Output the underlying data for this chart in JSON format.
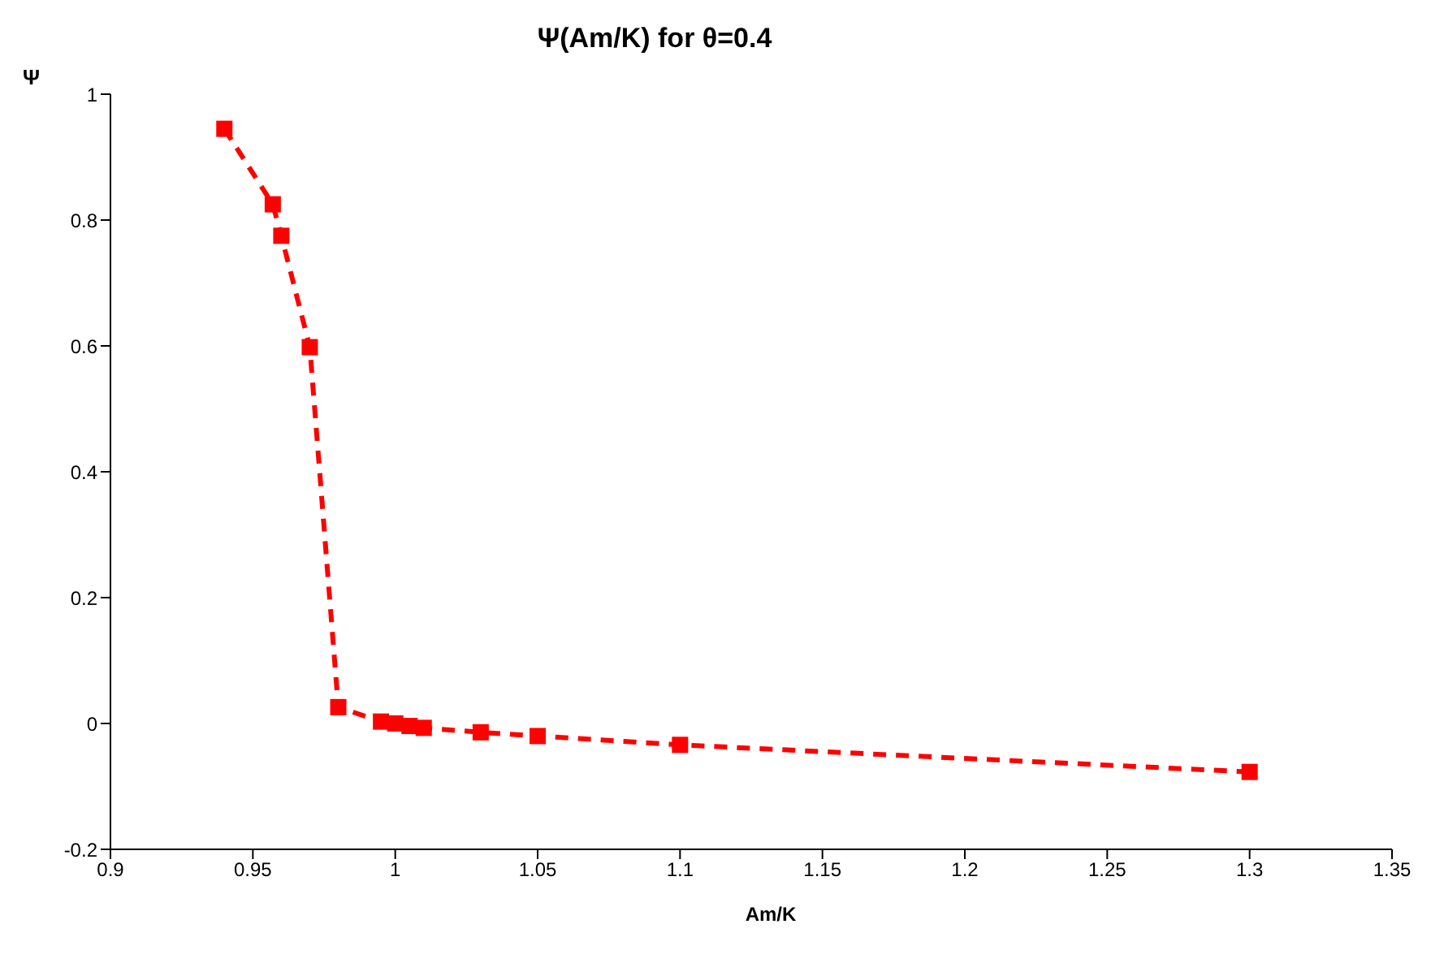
{
  "chart_data": {
    "type": "line",
    "title": "Ψ(Am/K) for θ=0.4",
    "xlabel": "Am/K",
    "ylabel": "Ψ",
    "x": [
      0.94,
      0.957,
      0.96,
      0.97,
      0.98,
      0.995,
      1.0,
      1.005,
      1.01,
      1.03,
      1.05,
      1.1,
      1.3
    ],
    "series": [
      {
        "color": "#ff0000",
        "values": [
          0.945,
          0.825,
          0.775,
          0.598,
          0.026,
          0.003,
          0.0,
          -0.004,
          -0.007,
          -0.014,
          -0.02,
          -0.034,
          -0.077
        ]
      }
    ],
    "xlim": [
      0.9,
      1.35
    ],
    "xticks": [
      0.9,
      0.95,
      1,
      1.05,
      1.1,
      1.15,
      1.2,
      1.25,
      1.3,
      1.35
    ],
    "ylim": [
      -0.2,
      1
    ],
    "yticks": [
      -0.2,
      0,
      0.2,
      0.4,
      0.6,
      0.8,
      1
    ],
    "grid": false,
    "legend": false,
    "marker": "square",
    "line_style": "dashed"
  }
}
